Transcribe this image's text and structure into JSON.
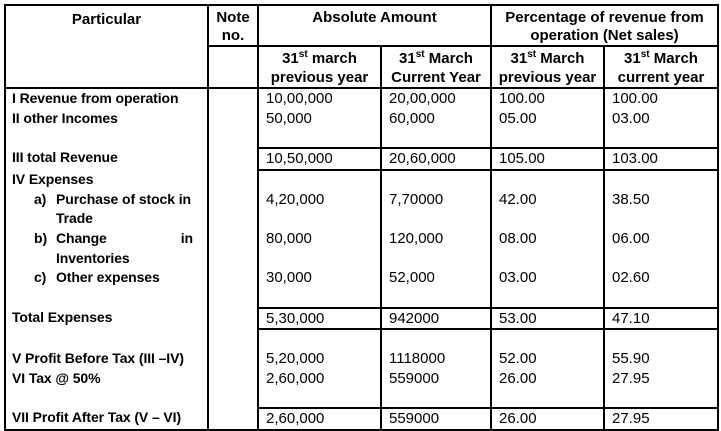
{
  "table": {
    "background_color": "#ffffff",
    "border_color": "#000000",
    "header": {
      "particular": "Particular",
      "note": {
        "line1": "Note",
        "line2": "no."
      },
      "absolute_amount": "Absolute Amount",
      "percentage": {
        "line1": "Percentage of revenue from",
        "line2": "operation (Net sales)"
      },
      "subheaders": [
        {
          "num": "31",
          "sup": "st",
          "rest": " march",
          "line2": "previous year"
        },
        {
          "num": "31",
          "sup": "st",
          "rest": " March",
          "line2": "Current Year"
        },
        {
          "num": "31",
          "sup": "st",
          "rest": " March",
          "line2": "previous year"
        },
        {
          "num": "31",
          "sup": "st",
          "rest": " March",
          "line2": "current year"
        }
      ]
    },
    "columns": [
      "Particular",
      "Note no.",
      "Absolute Amount 31st march previous year",
      "Absolute Amount 31st March Current Year",
      "Percentage 31st March previous year",
      "Percentage 31st March current year"
    ],
    "rows": [
      {
        "label": "I Revenue from operation",
        "v1": "10,00,000",
        "v2": "20,00,000",
        "v3": "100.00",
        "v4": "100.00"
      },
      {
        "label": "II other Incomes",
        "v1": "50,000",
        "v2": "60,000",
        "v3": "05.00",
        "v4": "03.00"
      },
      {
        "label": ""
      },
      {
        "label": "III total Revenue",
        "group_start": true,
        "v1": "10,50,000",
        "v2": "20,60,000",
        "v3": "105.00",
        "v4": "103.00"
      },
      {
        "label": "IV Expenses",
        "group_start": true
      },
      {
        "marker": "a)",
        "label": "Purchase of stock in",
        "v1": "4,20,000",
        "v2": "7,70000",
        "v3": "42.00",
        "v4": "38.50"
      },
      {
        "label": "Trade",
        "indent": true
      },
      {
        "marker": "b)",
        "label": "Change",
        "label_right": "in",
        "v1": "80,000",
        "v2": "120,000",
        "v3": "08.00",
        "v4": "06.00"
      },
      {
        "label": "Inventories",
        "indent": true
      },
      {
        "marker": "c)",
        "label": "Other expenses",
        "v1": "30,000",
        "v2": "52,000",
        "v3": "03.00",
        "v4": "02.60"
      },
      {
        "label": ""
      },
      {
        "label": "Total Expenses",
        "group_start": true,
        "v1": "5,30,000",
        "v2": "942000",
        "v3": "53.00",
        "v4": "47.10"
      },
      {
        "label": "",
        "group_start": true
      },
      {
        "label": "V Profit Before Tax (III –IV)",
        "v1": "5,20,000",
        "v2": "1118000",
        "v3": "52.00",
        "v4": "55.90"
      },
      {
        "label": "VI Tax @ 50%",
        "v1": "2,60,000",
        "v2": "559000",
        "v3": "26.00",
        "v4": "27.95"
      },
      {
        "label": ""
      },
      {
        "label": "VII Profit After Tax (V – VI)",
        "group_start": true,
        "v1": "2,60,000",
        "v2": "559000",
        "v3": "26.00",
        "v4": "27.95"
      }
    ]
  }
}
